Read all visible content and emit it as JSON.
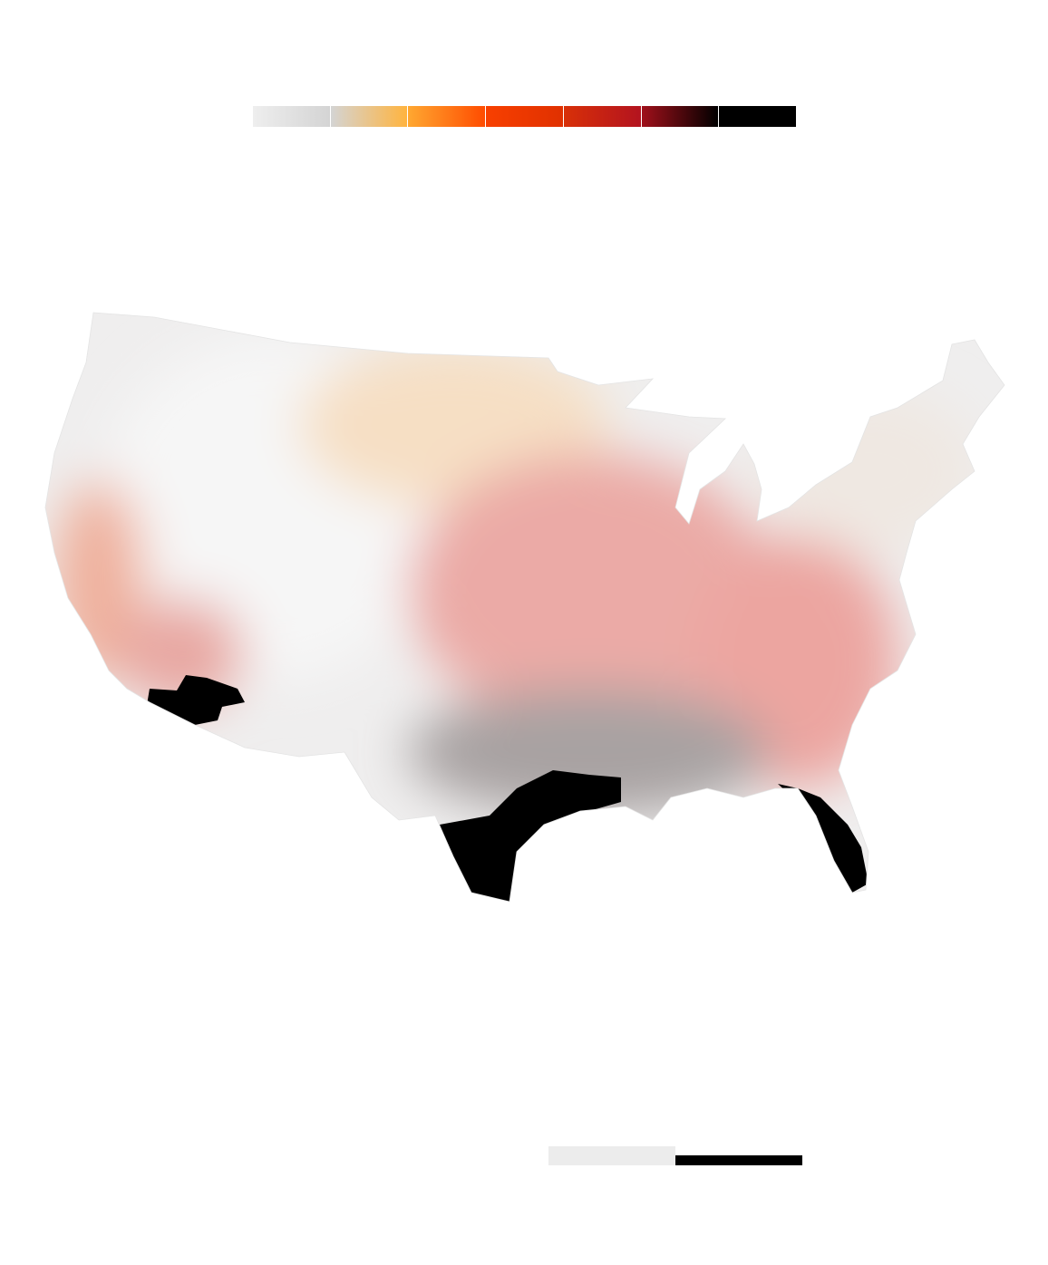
{
  "legend": {
    "gradients": [
      [
        "#eeeeee",
        "#d4d4d4"
      ],
      [
        "#d4d4d4",
        "#ffb43f"
      ],
      [
        "#ffa831",
        "#ff4c00"
      ],
      [
        "#f84000",
        "#e03000"
      ],
      [
        "#d83008",
        "#b3131f"
      ],
      [
        "#a0101a",
        "#000000"
      ],
      [
        "#000000",
        "#000000"
      ]
    ]
  },
  "map": {
    "base_color": "#efeeee",
    "regions": [
      {
        "name": "west-light",
        "color": "#f6f6f6"
      },
      {
        "name": "north-plains-peach",
        "color": "#f6dfc4"
      },
      {
        "name": "central-pink",
        "color": "#ebaaa6"
      },
      {
        "name": "southeast-pink",
        "color": "#eca5a0"
      },
      {
        "name": "gulf-grey",
        "color": "#a8a2a2"
      },
      {
        "name": "northeast-light",
        "color": "#efe8e2"
      },
      {
        "name": "california-pink",
        "color": "#efb09c"
      },
      {
        "name": "arizona-pink",
        "color": "#e8a7a2"
      },
      {
        "name": "texas-coast-black",
        "color": "#000000"
      },
      {
        "name": "florida-black",
        "color": "#000000"
      },
      {
        "name": "arizona-black",
        "color": "#000000"
      }
    ]
  },
  "scale_bar": {
    "colors": [
      "#ececec",
      "#000000"
    ]
  }
}
